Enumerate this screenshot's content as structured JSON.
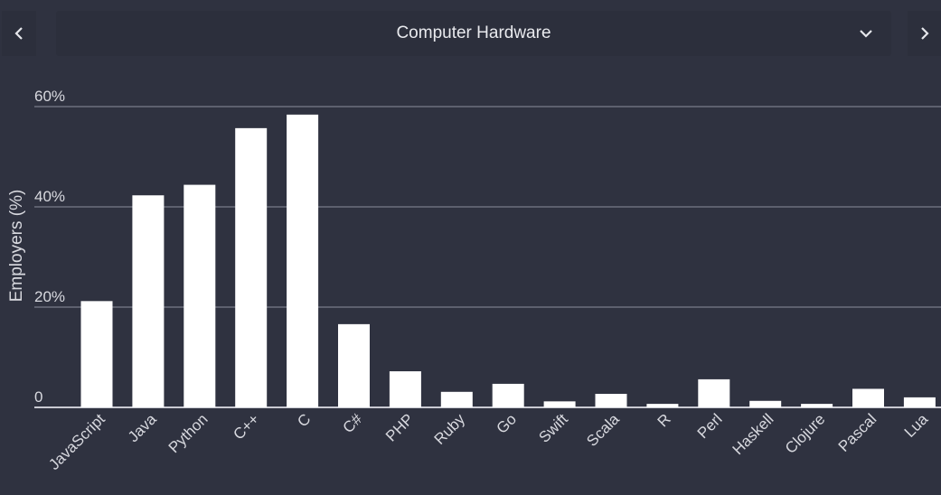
{
  "header": {
    "prev_icon": "chevron-left-icon",
    "next_icon": "chevron-right-icon",
    "dropdown_icon": "chevron-down-icon",
    "selected_category": "Computer Hardware"
  },
  "colors": {
    "background": "#2f3240",
    "bar": "#ffffff",
    "gridline": "#8b8e9b",
    "text": "#d8d9df"
  },
  "chart_data": {
    "type": "bar",
    "title": "",
    "xlabel": "",
    "ylabel": "Employers (%)",
    "ylim": [
      0,
      60
    ],
    "yticks": [
      0,
      20,
      40,
      60
    ],
    "ytick_labels": [
      "0",
      "20%",
      "40%",
      "60%"
    ],
    "grid": true,
    "categories": [
      "JavaScript",
      "Java",
      "Python",
      "C++",
      "C",
      "C#",
      "PHP",
      "Ruby",
      "Go",
      "Swift",
      "Scala",
      "R",
      "Perl",
      "Haskell",
      "Clojure",
      "Pascal",
      "Lua"
    ],
    "values": [
      21.2,
      42.3,
      44.4,
      55.7,
      58.4,
      16.6,
      7.2,
      3.1,
      4.7,
      1.2,
      2.7,
      0.7,
      5.6,
      1.3,
      0.7,
      3.7,
      2.0
    ]
  }
}
